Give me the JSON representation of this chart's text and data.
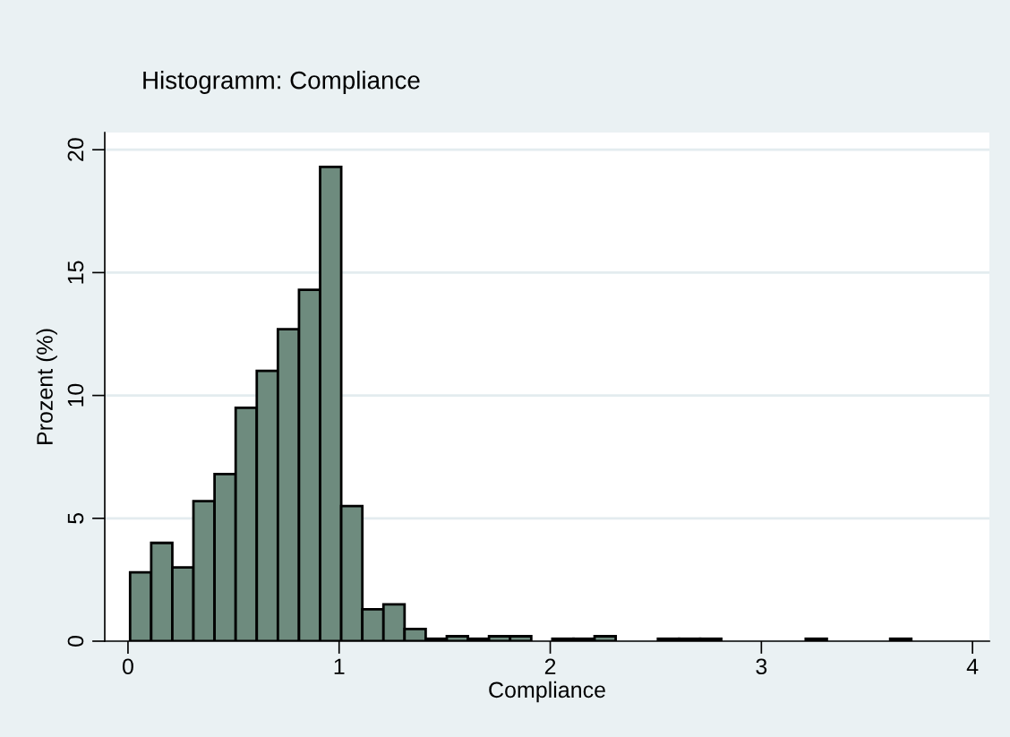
{
  "chart_data": {
    "type": "histogram",
    "title": "Histogramm: Compliance",
    "xlabel": "Compliance",
    "ylabel": "Prozent (%)",
    "bins": [
      0.01,
      0.11,
      0.21,
      0.31,
      0.41,
      0.51,
      0.61,
      0.71,
      0.81,
      0.91,
      1.01,
      1.11,
      1.21,
      1.31,
      1.41,
      1.51,
      1.61,
      1.71,
      1.81,
      1.91,
      2.01,
      2.11,
      2.21,
      2.31,
      2.41,
      2.51,
      2.61,
      2.71,
      2.81,
      2.91,
      3.01,
      3.11,
      3.21,
      3.31,
      3.41,
      3.51,
      3.61,
      3.71
    ],
    "values": [
      2.8,
      4.0,
      3.0,
      5.7,
      6.8,
      9.5,
      11.0,
      12.7,
      14.3,
      19.3,
      5.5,
      1.3,
      1.5,
      0.5,
      0.1,
      0.2,
      0.1,
      0.2,
      0.2,
      0,
      0.1,
      0.1,
      0.2,
      0,
      0,
      0.1,
      0.1,
      0.1,
      0,
      0,
      0,
      0,
      0.1,
      0,
      0,
      0,
      0.1
    ],
    "color": "#6e8b7e",
    "xlim": [
      -0.11,
      4.08
    ],
    "ylim": [
      0,
      20.7
    ],
    "xticks": [
      0,
      1,
      2,
      3,
      4
    ],
    "yticks": [
      0,
      5,
      10,
      15,
      20
    ],
    "grid": "y"
  }
}
